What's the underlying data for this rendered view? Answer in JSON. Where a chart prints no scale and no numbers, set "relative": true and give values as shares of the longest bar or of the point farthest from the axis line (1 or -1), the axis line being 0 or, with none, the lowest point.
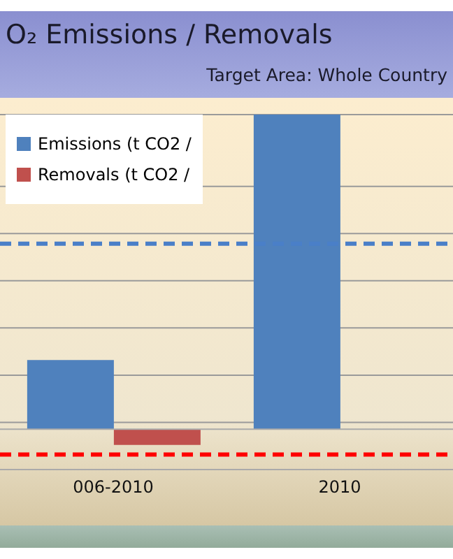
{
  "chart_data": {
    "type": "bar",
    "title": "O₂ Emissions / Removals",
    "subtitle": "Target Area: Whole Country",
    "categories": [
      "006-2010",
      "2010"
    ],
    "relative": true,
    "series": [
      {
        "name": "Emissions (t CO2 /",
        "color": "#4f81bd",
        "values": [
          0.22,
          1
        ]
      },
      {
        "name": "Removals (t CO2 /",
        "color": "#c0504d",
        "values": [
          -0.05,
          null
        ]
      }
    ],
    "ref_lines": [
      {
        "axis": "y",
        "value": 0.59,
        "color": "#4a7fc8",
        "line_style": "dashed"
      },
      {
        "axis": "y",
        "value": -0.08,
        "color": "#ff0000",
        "line_style": "dashed"
      }
    ],
    "grid": "y",
    "legend": "top left"
  }
}
